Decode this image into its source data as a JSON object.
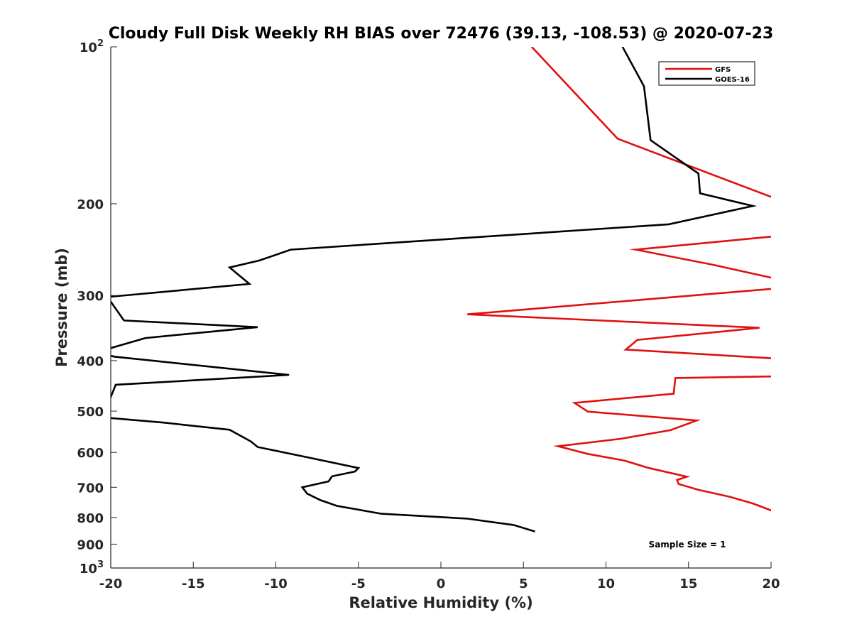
{
  "chart_data": {
    "type": "line",
    "title": "Cloudy Full Disk Weekly RH BIAS over 72476 (39.13, -108.53) @ 2020-07-23",
    "xlabel": "Relative Humidity (%)",
    "ylabel": "Pressure (mb)",
    "xlim": [
      -20,
      20
    ],
    "ylim": [
      100,
      1000
    ],
    "y_scale": "log",
    "y_reversed": true,
    "x_ticks": [
      -20,
      -15,
      -10,
      -5,
      0,
      5,
      10,
      15,
      20
    ],
    "x_tick_labels": [
      "-20",
      "-15",
      "-10",
      "-5",
      "0",
      "5",
      "10",
      "15",
      "20"
    ],
    "y_ticks": [
      {
        "value": 100,
        "base": "10",
        "exp": "2"
      },
      {
        "value": 200,
        "label": "200"
      },
      {
        "value": 300,
        "label": "300"
      },
      {
        "value": 400,
        "label": "400"
      },
      {
        "value": 500,
        "label": "500"
      },
      {
        "value": 600,
        "label": "600"
      },
      {
        "value": 700,
        "label": "700"
      },
      {
        "value": 800,
        "label": "800"
      },
      {
        "value": 900,
        "label": "900"
      },
      {
        "value": 1000,
        "base": "10",
        "exp": "3"
      }
    ],
    "grid": false,
    "legend_position": "top-right",
    "annotation": "Sample Size = 1",
    "series": [
      {
        "name": "GFS",
        "color": "#e01010",
        "points": [
          [
            5.5,
            100
          ],
          [
            10.7,
            150
          ],
          [
            21.1,
            200
          ],
          [
            20.8,
            230
          ],
          [
            11.8,
            245
          ],
          [
            16.5,
            262
          ],
          [
            20.6,
            280
          ],
          [
            20.8,
            290
          ],
          [
            1.6,
            326
          ],
          [
            19.3,
            346
          ],
          [
            11.9,
            365
          ],
          [
            11.2,
            381
          ],
          [
            20.1,
            396
          ],
          [
            20.1,
            429
          ],
          [
            14.2,
            432
          ],
          [
            14.1,
            463
          ],
          [
            8.1,
            482
          ],
          [
            8.9,
            501
          ],
          [
            15.5,
            521
          ],
          [
            13.9,
            544
          ],
          [
            10.9,
            565
          ],
          [
            7.1,
            584
          ],
          [
            8.9,
            604
          ],
          [
            11.1,
            622
          ],
          [
            12.6,
            643
          ],
          [
            14.9,
            668
          ],
          [
            14.3,
            678
          ],
          [
            14.4,
            690
          ],
          [
            15.6,
            708
          ],
          [
            17.5,
            730
          ],
          [
            18.9,
            752
          ],
          [
            20.5,
            786
          ]
        ]
      },
      {
        "name": "GOES-16",
        "color": "#000000",
        "points": [
          [
            11.0,
            100
          ],
          [
            12.3,
            119
          ],
          [
            12.7,
            151
          ],
          [
            15.6,
            175
          ],
          [
            15.7,
            191
          ],
          [
            18.9,
            202
          ],
          [
            13.8,
            219
          ],
          [
            -9.1,
            245
          ],
          [
            -11.0,
            257
          ],
          [
            -12.8,
            265
          ],
          [
            -11.6,
            285
          ],
          [
            -20.2,
            302
          ],
          [
            -19.2,
            335
          ],
          [
            -11.1,
            345
          ],
          [
            -17.9,
            362
          ],
          [
            -20.8,
            385
          ],
          [
            -19.8,
            393
          ],
          [
            -9.2,
            426
          ],
          [
            -19.7,
            445
          ],
          [
            -20.5,
            514
          ],
          [
            -16.8,
            526
          ],
          [
            -12.8,
            543
          ],
          [
            -11.5,
            572
          ],
          [
            -11.1,
            586
          ],
          [
            -8.0,
            614
          ],
          [
            -5.0,
            643
          ],
          [
            -5.2,
            653
          ],
          [
            -6.6,
            667
          ],
          [
            -6.8,
            682
          ],
          [
            -8.4,
            700
          ],
          [
            -8.1,
            720
          ],
          [
            -7.3,
            741
          ],
          [
            -6.3,
            760
          ],
          [
            -3.6,
            787
          ],
          [
            1.6,
            804
          ],
          [
            4.4,
            827
          ],
          [
            5.7,
            851
          ]
        ]
      }
    ]
  }
}
